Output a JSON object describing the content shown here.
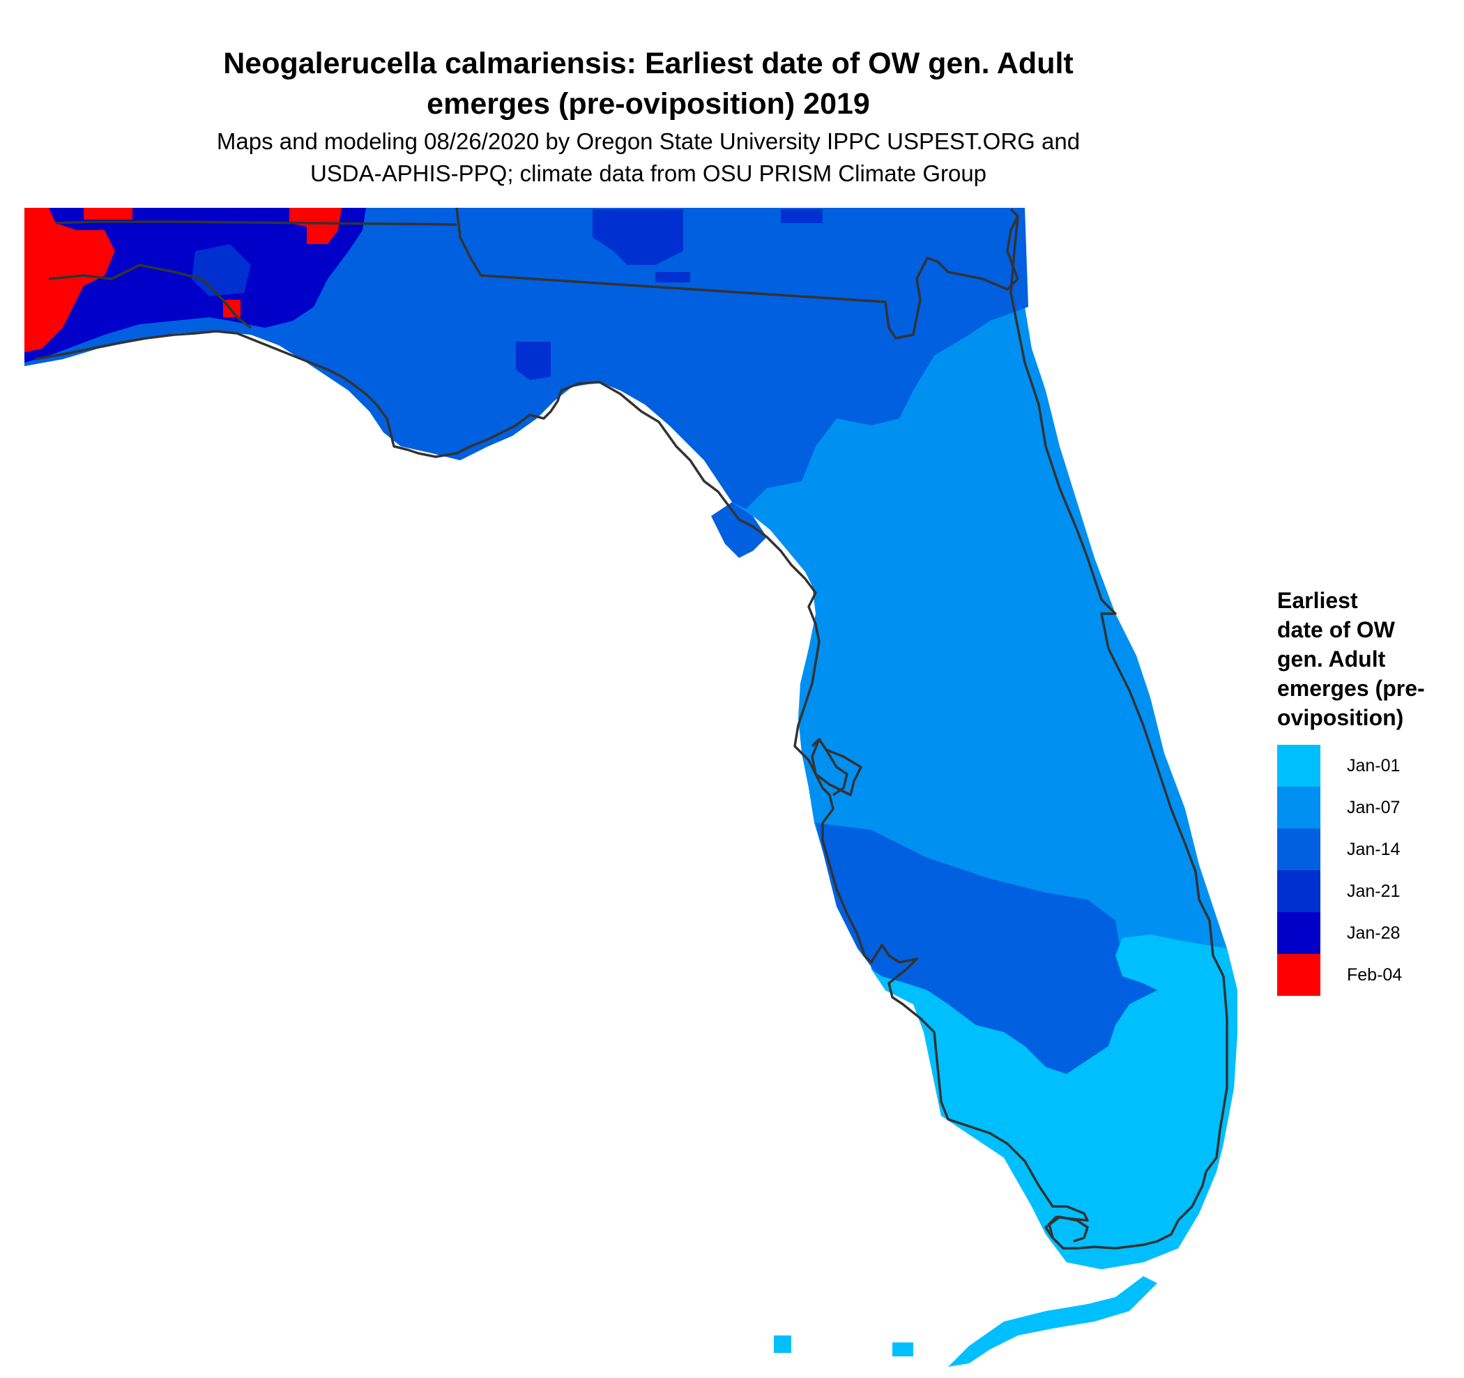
{
  "title_line1": "Neogalerucella calmariensis: Earliest date of OW gen. Adult",
  "title_line2": "emerges (pre-oviposition) 2019",
  "subtitle_line1": "Maps and modeling 08/26/2020 by Oregon State University IPPC USPEST.ORG and",
  "subtitle_line2": "USDA-APHIS-PPQ; climate data from OSU PRISM Climate Group",
  "legend": {
    "title_lines": [
      "Earliest",
      "date of OW",
      "gen. Adult",
      "emerges (pre-",
      "oviposition)"
    ],
    "items": [
      {
        "label": "Jan-01",
        "color": "#00BFFF"
      },
      {
        "label": "Jan-07",
        "color": "#0090F2"
      },
      {
        "label": "Jan-14",
        "color": "#0060E0"
      },
      {
        "label": "Jan-21",
        "color": "#0030D0"
      },
      {
        "label": "Jan-28",
        "color": "#0000C8"
      },
      {
        "label": "Feb-04",
        "color": "#FF0000"
      }
    ]
  },
  "map": {
    "region": "Florida",
    "outline_color": "#333333"
  }
}
